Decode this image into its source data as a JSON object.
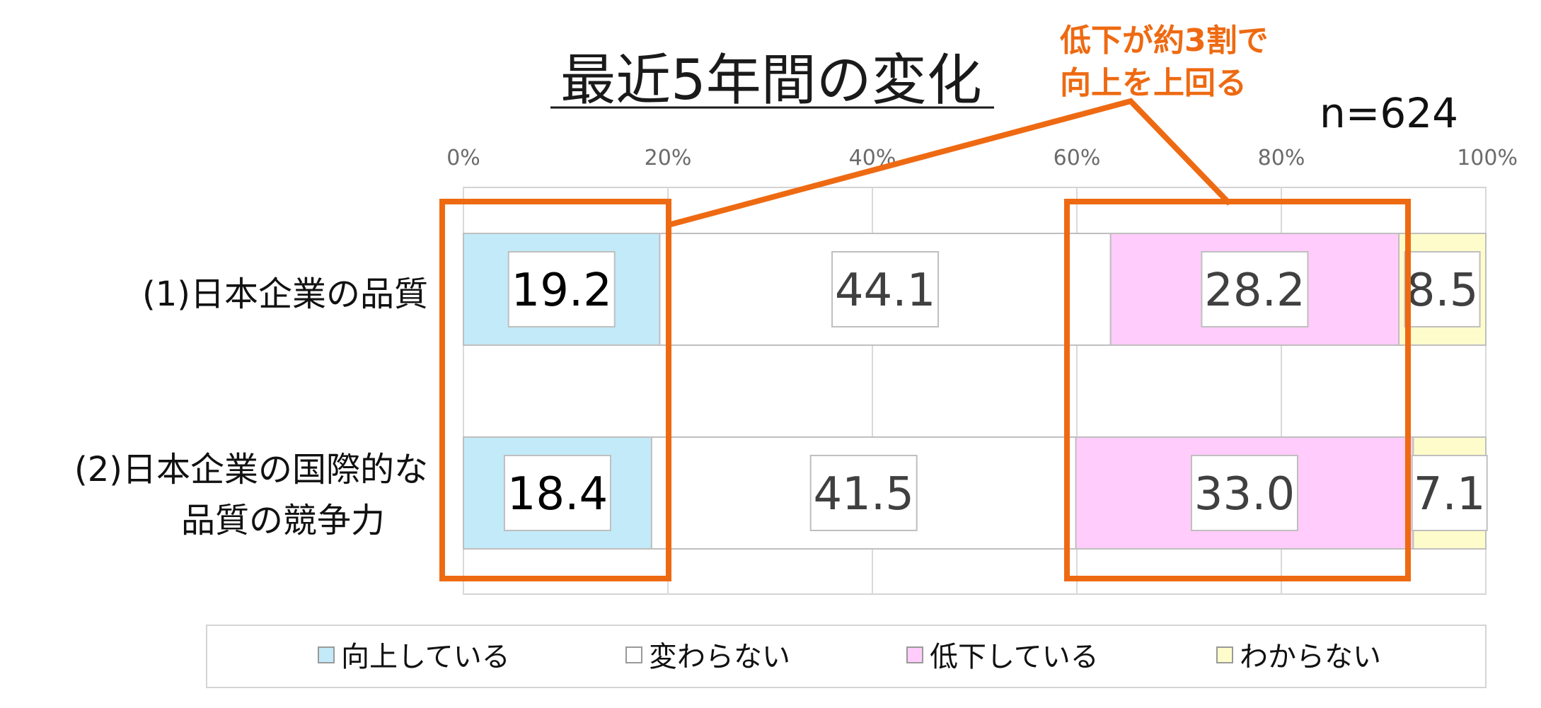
{
  "chart_data": {
    "type": "bar",
    "orientation": "horizontal",
    "stacked": "100%",
    "title": "最近5年間の変化",
    "sample_size": "n=624",
    "categories": [
      [
        "(1)日本企業の品質"
      ],
      [
        "(2)日本企業の国際的な",
        "品質の競争力"
      ]
    ],
    "series": [
      {
        "name": "向上している",
        "values": [
          19.2,
          18.4
        ],
        "color": "#c3eaf8",
        "labels": [
          "19.2",
          "18.4"
        ]
      },
      {
        "name": "変わらない",
        "values": [
          44.1,
          41.5
        ],
        "color": "#ffffff",
        "labels": [
          "44.1",
          "41.5"
        ]
      },
      {
        "name": "低下している",
        "values": [
          28.2,
          33.0
        ],
        "color": "#ffccfb",
        "labels": [
          "28.2",
          "33.0"
        ]
      },
      {
        "name": "わからない",
        "values": [
          8.5,
          7.1
        ],
        "color": "#fffccb",
        "labels": [
          "8.5",
          "7.1"
        ]
      }
    ],
    "xlim": [
      0,
      100
    ],
    "xticks": [
      "0%",
      "20%",
      "40%",
      "60%",
      "80%",
      "100%"
    ],
    "grid": true,
    "legend_position": "bottom",
    "annotation": {
      "lines": [
        "低下が約3割で",
        "向上を上回る"
      ],
      "color": "#ee6a12"
    }
  }
}
